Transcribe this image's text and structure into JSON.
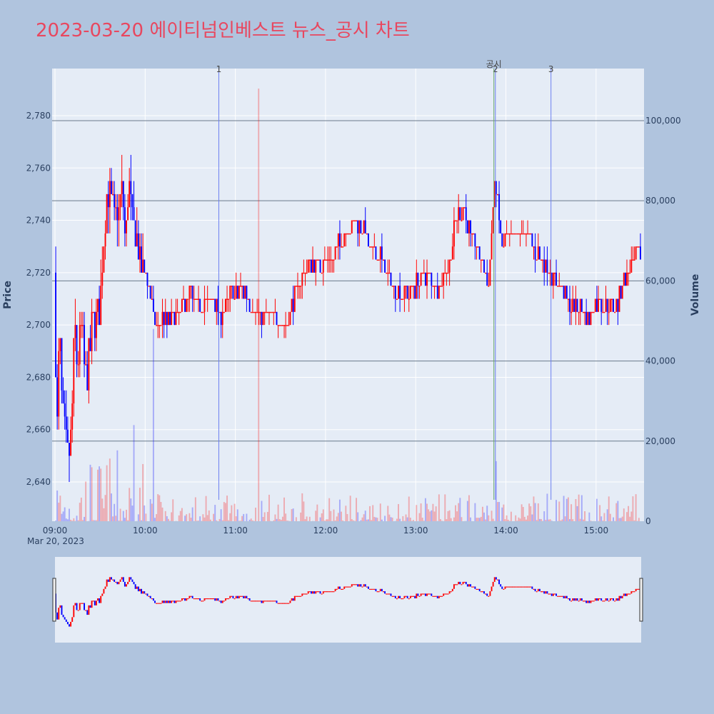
{
  "title": "2023-03-20 에이티넘인베스트 뉴스_공시 차트",
  "chart_data": {
    "type": "candlestick",
    "date_label": "Mar 20, 2023",
    "x_ticks": [
      "09:00",
      "10:00",
      "11:00",
      "12:00",
      "13:00",
      "14:00",
      "15:00"
    ],
    "x_range": [
      "09:00",
      "15:30"
    ],
    "y_title": "Price",
    "y_range": [
      2625,
      2798
    ],
    "y_ticks": [
      2640,
      2660,
      2680,
      2700,
      2720,
      2740,
      2760,
      2780
    ],
    "y2_title": "Volume",
    "y2_range": [
      0,
      113000
    ],
    "y2_ticks": [
      0,
      20000,
      40000,
      60000,
      80000,
      100000
    ],
    "grid": true,
    "up_color": "#ff0000",
    "down_color": "#0000ff",
    "annotations": [
      {
        "label": "1",
        "time": "10:49"
      },
      {
        "label": "2",
        "time": "13:53"
      },
      {
        "label": "3",
        "time": "14:30"
      },
      {
        "label": "공시",
        "time": "13:52"
      }
    ],
    "hlines_volume": [
      100000,
      80000,
      60000,
      40000,
      20000
    ],
    "price_path": [
      [
        "09:00",
        2720
      ],
      [
        "09:01",
        2650
      ],
      [
        "09:03",
        2700
      ],
      [
        "09:05",
        2665
      ],
      [
        "09:07",
        2660
      ],
      [
        "09:09",
        2645
      ],
      [
        "09:11",
        2660
      ],
      [
        "09:13",
        2700
      ],
      [
        "09:15",
        2685
      ],
      [
        "09:17",
        2700
      ],
      [
        "09:19",
        2690
      ],
      [
        "09:21",
        2675
      ],
      [
        "09:23",
        2690
      ],
      [
        "09:25",
        2700
      ],
      [
        "09:27",
        2700
      ],
      [
        "09:30",
        2705
      ],
      [
        "09:33",
        2740
      ],
      [
        "09:35",
        2755
      ],
      [
        "09:37",
        2745
      ],
      [
        "09:40",
        2740
      ],
      [
        "09:43",
        2745
      ],
      [
        "09:45",
        2750
      ],
      [
        "09:47",
        2730
      ],
      [
        "09:49",
        2755
      ],
      [
        "09:51",
        2740
      ],
      [
        "09:54",
        2735
      ],
      [
        "09:57",
        2722
      ],
      [
        "10:00",
        2722
      ],
      [
        "10:03",
        2712
      ],
      [
        "10:05",
        2705
      ],
      [
        "10:08",
        2700
      ],
      [
        "10:12",
        2703
      ],
      [
        "10:16",
        2700
      ],
      [
        "10:20",
        2703
      ],
      [
        "10:25",
        2706
      ],
      [
        "10:30",
        2712
      ],
      [
        "10:35",
        2706
      ],
      [
        "10:45",
        2710
      ],
      [
        "10:49",
        2703
      ],
      [
        "10:55",
        2710
      ],
      [
        "11:05",
        2714
      ],
      [
        "11:10",
        2708
      ],
      [
        "11:18",
        2703
      ],
      [
        "11:25",
        2703
      ],
      [
        "11:35",
        2700
      ],
      [
        "11:40",
        2712
      ],
      [
        "11:48",
        2722
      ],
      [
        "11:55",
        2724
      ],
      [
        "12:05",
        2727
      ],
      [
        "12:12",
        2733
      ],
      [
        "12:18",
        2740
      ],
      [
        "12:25",
        2737
      ],
      [
        "12:30",
        2730
      ],
      [
        "12:38",
        2725
      ],
      [
        "12:45",
        2715
      ],
      [
        "12:55",
        2712
      ],
      [
        "13:05",
        2718
      ],
      [
        "13:15",
        2715
      ],
      [
        "13:22",
        2722
      ],
      [
        "13:28",
        2745
      ],
      [
        "13:33",
        2743
      ],
      [
        "13:38",
        2732
      ],
      [
        "13:43",
        2728
      ],
      [
        "13:48",
        2715
      ],
      [
        "13:53",
        2755
      ],
      [
        "13:57",
        2730
      ],
      [
        "14:02",
        2735
      ],
      [
        "14:08",
        2735
      ],
      [
        "14:14",
        2735
      ],
      [
        "14:20",
        2727
      ],
      [
        "14:26",
        2725
      ],
      [
        "14:32",
        2718
      ],
      [
        "14:38",
        2712
      ],
      [
        "14:44",
        2706
      ],
      [
        "14:50",
        2708
      ],
      [
        "14:56",
        2703
      ],
      [
        "15:02",
        2710
      ],
      [
        "15:08",
        2705
      ],
      [
        "15:14",
        2707
      ],
      [
        "15:20",
        2720
      ],
      [
        "15:30",
        2728
      ]
    ]
  }
}
